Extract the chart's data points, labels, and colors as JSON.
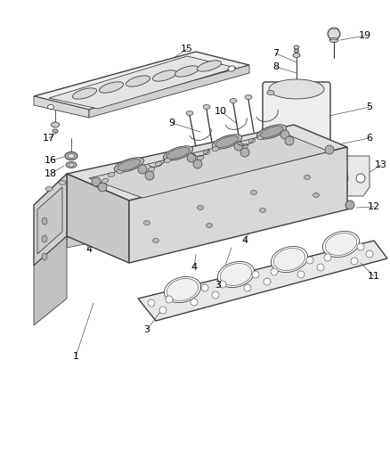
{
  "bg_color": "#ffffff",
  "line_color": "#404040",
  "label_color": "#000000",
  "lw_main": 1.0,
  "lw_thin": 0.6,
  "label_size": 8.0
}
